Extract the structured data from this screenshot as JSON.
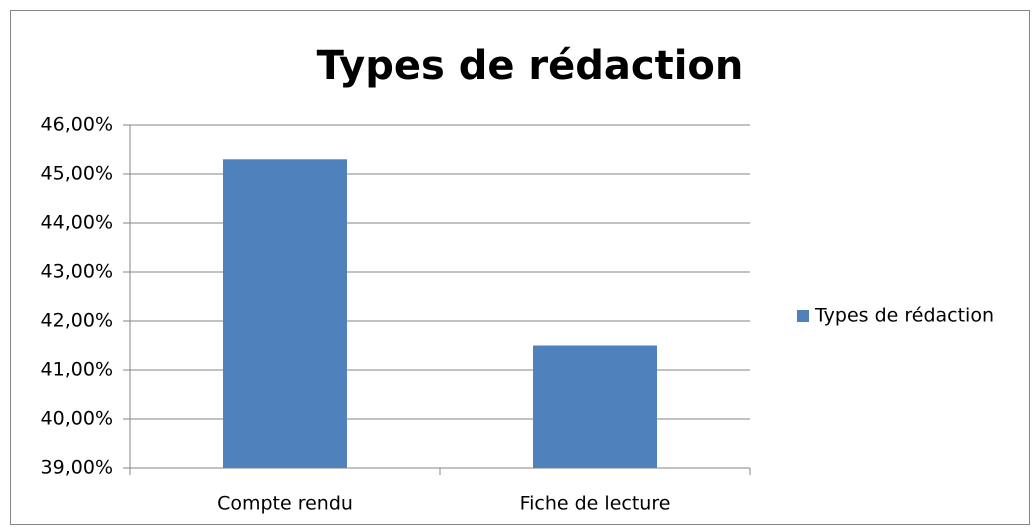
{
  "chart_data": {
    "type": "bar",
    "title": "Types de rédaction",
    "categories": [
      "Compte rendu",
      "Fiche de lecture"
    ],
    "series": [
      {
        "name": "Types de rédaction",
        "color": "#4f81bd",
        "values": [
          45.3,
          41.5
        ]
      }
    ],
    "ylim": [
      39,
      46
    ],
    "yticks": [
      {
        "value": 39,
        "label": "39,00%"
      },
      {
        "value": 40,
        "label": "40,00%"
      },
      {
        "value": 41,
        "label": "41,00%"
      },
      {
        "value": 42,
        "label": "42,00%"
      },
      {
        "value": 43,
        "label": "43,00%"
      },
      {
        "value": 44,
        "label": "44,00%"
      },
      {
        "value": 45,
        "label": "45,00%"
      },
      {
        "value": 46,
        "label": "46,00%"
      }
    ],
    "grid": true,
    "legend": "right"
  }
}
